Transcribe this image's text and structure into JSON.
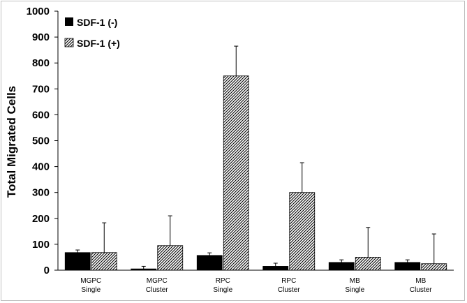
{
  "chart_data": {
    "type": "bar",
    "title": "",
    "xlabel": "",
    "ylabel": "Total Migrated Cells",
    "ylim": [
      0,
      1000
    ],
    "yticks": [
      0,
      100,
      200,
      300,
      400,
      500,
      600,
      700,
      800,
      900,
      1000
    ],
    "categories": [
      [
        "MGPC",
        "Single"
      ],
      [
        "MGPC",
        "Cluster"
      ],
      [
        "RPC",
        "Single"
      ],
      [
        "RPC",
        "Cluster"
      ],
      [
        "MB",
        "Single"
      ],
      [
        "MB",
        "Cluster"
      ]
    ],
    "series": [
      {
        "name": "SDF-1 (-)",
        "fill": "#000000",
        "pattern": "solid",
        "values": [
          68,
          5,
          57,
          15,
          30,
          30
        ],
        "errors": [
          10,
          10,
          10,
          12,
          10,
          10
        ]
      },
      {
        "name": "SDF-1 (+)",
        "fill": "#ffffff",
        "pattern": "diagonal-hatch",
        "values": [
          68,
          95,
          750,
          300,
          50,
          25
        ],
        "errors": [
          115,
          115,
          115,
          115,
          115,
          115
        ]
      }
    ],
    "legend": "top-left",
    "grid": false
  }
}
